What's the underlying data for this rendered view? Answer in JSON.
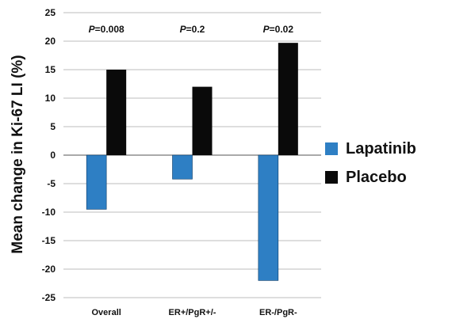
{
  "chart_data": {
    "type": "bar",
    "ylabel": "Mean change in Ki-67 LI (%)",
    "categories": [
      "Overall",
      "ER+/PgR+/-",
      "ER-/PgR-"
    ],
    "series": [
      {
        "name": "Lapatinib",
        "color": "#2e7fc4",
        "values": [
          -9.5,
          -4.2,
          -22
        ]
      },
      {
        "name": "Placebo",
        "color": "#0a0a0a",
        "values": [
          15,
          12,
          19.7
        ]
      }
    ],
    "annotations": [
      {
        "category": "Overall",
        "p_label": "P",
        "p_value": "=0.008"
      },
      {
        "category": "ER+/PgR+/-",
        "p_label": "P",
        "p_value": "=0.2"
      },
      {
        "category": "ER-/PgR-",
        "p_label": "P",
        "p_value": "=0.02"
      }
    ],
    "ylim": [
      -25,
      25
    ],
    "yticks": [
      25,
      20,
      15,
      10,
      5,
      0,
      -5,
      -10,
      -15,
      -20,
      -25
    ],
    "grid": true,
    "legend_position": "right"
  }
}
